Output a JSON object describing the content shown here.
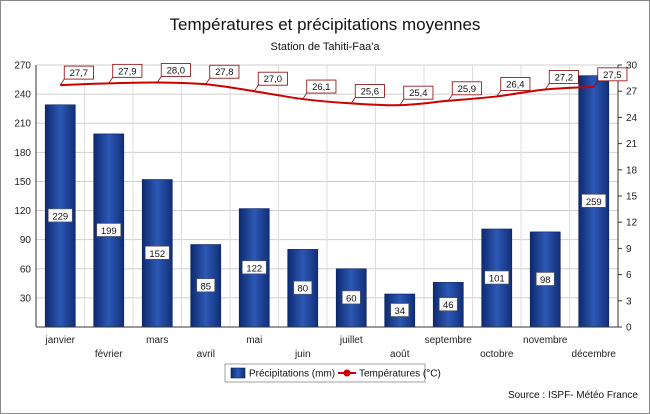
{
  "chart_data": {
    "type": "bar+line",
    "title": "Températures et précipitations moyennes",
    "subtitle": "Station de Tahiti-Faa'a",
    "categories": [
      "janvier",
      "février",
      "mars",
      "avril",
      "mai",
      "juin",
      "juillet",
      "août",
      "septembre",
      "octobre",
      "novembre",
      "décembre"
    ],
    "series": [
      {
        "name": "Précipitations (mm)",
        "type": "bar",
        "axis": "left",
        "values": [
          229,
          199,
          152,
          85,
          122,
          80,
          60,
          34,
          46,
          101,
          98,
          259
        ],
        "labels": [
          "229",
          "199",
          "152",
          "85",
          "122",
          "80",
          "60",
          "34",
          "46",
          "101",
          "98",
          "259"
        ],
        "color": "#1f3f8f"
      },
      {
        "name": "Températures (°C)",
        "type": "line",
        "axis": "right",
        "values": [
          27.7,
          27.9,
          28.0,
          27.8,
          27.0,
          26.1,
          25.6,
          25.4,
          25.9,
          26.4,
          27.2,
          27.5
        ],
        "labels": [
          "27,7",
          "27,9",
          "28,0",
          "27,8",
          "27,0",
          "26,1",
          "25,6",
          "25,4",
          "25,9",
          "26,4",
          "27,2",
          "27,5"
        ],
        "color": "#cc0000"
      }
    ],
    "y_left": {
      "range": [
        0,
        270
      ],
      "ticks": [
        "30",
        "60",
        "90",
        "120",
        "150",
        "180",
        "210",
        "240",
        "270"
      ],
      "tick_values": [
        30,
        60,
        90,
        120,
        150,
        180,
        210,
        240,
        270
      ]
    },
    "y_right": {
      "range": [
        0,
        30
      ],
      "ticks": [
        "0",
        "3",
        "6",
        "9",
        "12",
        "15",
        "18",
        "21",
        "24",
        "27",
        "30"
      ],
      "tick_values": [
        0,
        3,
        6,
        9,
        12,
        15,
        18,
        21,
        24,
        27,
        30
      ]
    },
    "grid": true,
    "legend_position": "bottom-center",
    "source": "Source : ISPF- Météo France"
  }
}
